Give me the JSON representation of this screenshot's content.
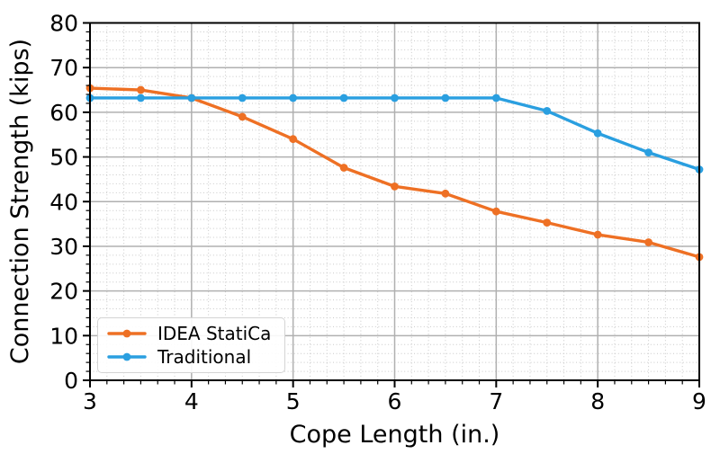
{
  "chart_data": {
    "type": "line",
    "title": "",
    "xlabel": "Cope Length (in.)",
    "ylabel": "Connection Strength (kips)",
    "xlim": [
      3,
      9
    ],
    "ylim": [
      0,
      80
    ],
    "xticks": [
      3,
      4,
      5,
      6,
      7,
      8,
      9
    ],
    "yticks": [
      0,
      10,
      20,
      30,
      40,
      50,
      60,
      70,
      80
    ],
    "grid": {
      "major": true,
      "minor": true,
      "x_minor_divs": 6,
      "y_minor_divs": 5
    },
    "legend_position": "lower left",
    "x": [
      3,
      3.5,
      4,
      4.5,
      5,
      5.5,
      6,
      6.5,
      7,
      7.5,
      8,
      8.5,
      9
    ],
    "series": [
      {
        "name": "IDEA StatiCa",
        "color": "#ee7024",
        "values": [
          65.4,
          65.0,
          63.2,
          59.0,
          54.0,
          47.6,
          43.4,
          41.8,
          37.8,
          35.3,
          32.6,
          30.9,
          27.6
        ]
      },
      {
        "name": "Traditional",
        "color": "#2a9fe0",
        "values": [
          63.2,
          63.2,
          63.2,
          63.2,
          63.2,
          63.2,
          63.2,
          63.2,
          63.2,
          60.3,
          55.3,
          51.0,
          47.2
        ]
      }
    ],
    "colors": {
      "major_grid": "#b0b0b0",
      "minor_grid": "#c9c9c9",
      "spine": "#000000",
      "text": "#000000"
    }
  }
}
